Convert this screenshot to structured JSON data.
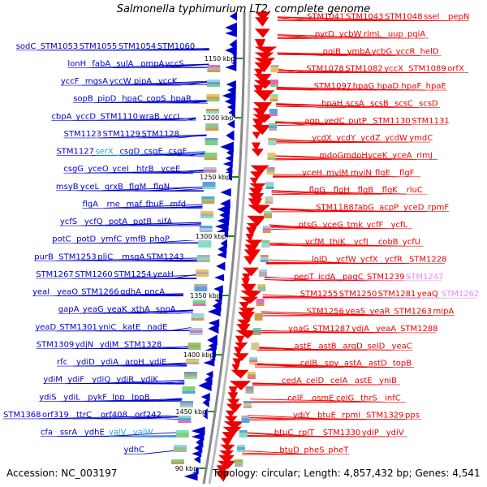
{
  "title": "Salmonella typhimurium LT2, complete genome",
  "footer": {
    "accession": "Accession: NC_003197",
    "summary": "Topology: circular; Length: 4,857,432 bp; Genes: 4,541"
  },
  "colors": {
    "left_strand": "#0000cc",
    "right_strand": "#ee0000",
    "rna_left": "#22aadd",
    "rna_right": "#ee88ee",
    "backbone": "#888888",
    "tick_mark": "#009900"
  },
  "ticks": [
    "1150 kbp",
    "1200 kbp",
    "1250 kbp",
    "1300 kbp",
    "1350 kbp",
    "1400 kbp",
    "1450 kbp",
    "90 kbp"
  ],
  "left_labels": [
    {
      "t": "sodC"
    },
    {
      "t": "STM1053"
    },
    {
      "t": "STM1055"
    },
    {
      "t": "STM1054"
    },
    {
      "t": "STM1060"
    },
    {
      "t": "lonH"
    },
    {
      "t": "fabA"
    },
    {
      "t": "sulA"
    },
    {
      "t": "ompA"
    },
    {
      "t": "yccS"
    },
    {
      "t": "yccF"
    },
    {
      "t": "mgsA"
    },
    {
      "t": "yccW"
    },
    {
      "t": "pipA"
    },
    {
      "t": "yccK"
    },
    {
      "t": "sopB"
    },
    {
      "t": "pipD"
    },
    {
      "t": "hpaC"
    },
    {
      "t": "copS"
    },
    {
      "t": "hpaR"
    },
    {
      "t": "cbpA"
    },
    {
      "t": "yccD"
    },
    {
      "t": "STM1110"
    },
    {
      "t": "wraB"
    },
    {
      "t": "yccJ"
    },
    {
      "t": "STM1123"
    },
    {
      "t": "STM1129"
    },
    {
      "t": "STM1128"
    },
    {
      "t": "STM1127"
    },
    {
      "t": "serX",
      "rna": true
    },
    {
      "t": "csgD"
    },
    {
      "t": "csgE"
    },
    {
      "t": "csgF"
    },
    {
      "t": "csgG"
    },
    {
      "t": "yceO"
    },
    {
      "t": "yceI"
    },
    {
      "t": "htrB"
    },
    {
      "t": "yceE"
    },
    {
      "t": "msyB"
    },
    {
      "t": "yceL"
    },
    {
      "t": "grxB"
    },
    {
      "t": "flgM"
    },
    {
      "t": "flgN"
    },
    {
      "t": "flgA"
    },
    {
      "t": "rne"
    },
    {
      "t": "maf"
    },
    {
      "t": "fhuE"
    },
    {
      "t": "mfd"
    },
    {
      "t": "ycfS"
    },
    {
      "t": "ycfQ"
    },
    {
      "t": "potA"
    },
    {
      "t": "potB"
    },
    {
      "t": "sifA"
    },
    {
      "t": "potC"
    },
    {
      "t": "potD"
    },
    {
      "t": "ymfC"
    },
    {
      "t": "ymfB"
    },
    {
      "t": "phoP"
    },
    {
      "t": "purB"
    },
    {
      "t": "STM1253"
    },
    {
      "t": "pliC"
    },
    {
      "t": "msgA"
    },
    {
      "t": "STM1243"
    },
    {
      "t": "STM1267"
    },
    {
      "t": "STM1260"
    },
    {
      "t": "STM1254"
    },
    {
      "t": "yeaH"
    },
    {
      "t": "yeaI"
    },
    {
      "t": "yeaO"
    },
    {
      "t": "STM1266"
    },
    {
      "t": "gdhA"
    },
    {
      "t": "pncA"
    },
    {
      "t": "gapA"
    },
    {
      "t": "yeaG"
    },
    {
      "t": "yeaK"
    },
    {
      "t": "xthA"
    },
    {
      "t": "sppA"
    },
    {
      "t": "yeaD"
    },
    {
      "t": "STM1301"
    },
    {
      "t": "yniC"
    },
    {
      "t": "katE"
    },
    {
      "t": "nadE"
    },
    {
      "t": "STM1309"
    },
    {
      "t": "ydjN"
    },
    {
      "t": "ydjM"
    },
    {
      "t": "STM1328"
    },
    {
      "t": "rfc"
    },
    {
      "t": "ydiD"
    },
    {
      "t": "ydiA"
    },
    {
      "t": "aroH"
    },
    {
      "t": "ydiE"
    },
    {
      "t": "ydiM"
    },
    {
      "t": "ydiF"
    },
    {
      "t": "ydiQ"
    },
    {
      "t": "ydiR"
    },
    {
      "t": "ydiK"
    },
    {
      "t": "ydiS"
    },
    {
      "t": "ydiL"
    },
    {
      "t": "pykF"
    },
    {
      "t": "lpp"
    },
    {
      "t": "lppB"
    },
    {
      "t": "STM1368"
    },
    {
      "t": "orf319"
    },
    {
      "t": "ttrC"
    },
    {
      "t": "orf408"
    },
    {
      "t": "orf242"
    },
    {
      "t": "cfa"
    },
    {
      "t": "ssrA"
    },
    {
      "t": "ydhE"
    },
    {
      "t": "valV",
      "rna": true
    },
    {
      "t": "valW",
      "rna": true
    },
    {
      "t": "ydhC"
    }
  ],
  "right_labels": [
    {
      "t": "STM1041"
    },
    {
      "t": "STM1043"
    },
    {
      "t": "STM1048"
    },
    {
      "t": "sseI"
    },
    {
      "t": "pepN"
    },
    {
      "t": "pyrD"
    },
    {
      "t": "ycbW"
    },
    {
      "t": "rlmL"
    },
    {
      "t": "uup"
    },
    {
      "t": "pqiA"
    },
    {
      "t": "pqiB"
    },
    {
      "t": "ymbA"
    },
    {
      "t": "ycbG"
    },
    {
      "t": "yccR"
    },
    {
      "t": "helD"
    },
    {
      "t": "STM1078"
    },
    {
      "t": "STM1082"
    },
    {
      "t": "yccX"
    },
    {
      "t": "STM1089"
    },
    {
      "t": "orfX"
    },
    {
      "t": "STM1097"
    },
    {
      "t": "hpaG"
    },
    {
      "t": "hpaD"
    },
    {
      "t": "hpaF"
    },
    {
      "t": "hpaE"
    },
    {
      "t": "hpaH"
    },
    {
      "t": "scsA"
    },
    {
      "t": "scsB"
    },
    {
      "t": "scsC"
    },
    {
      "t": "scsD"
    },
    {
      "t": "agp"
    },
    {
      "t": "yedC"
    },
    {
      "t": "putP"
    },
    {
      "t": "STM1130"
    },
    {
      "t": "STM1131"
    },
    {
      "t": "ycdX"
    },
    {
      "t": "ycdY"
    },
    {
      "t": "ycdZ"
    },
    {
      "t": "ycdW"
    },
    {
      "t": "ymdC"
    },
    {
      "t": "mdoG"
    },
    {
      "t": "mdoH"
    },
    {
      "t": "yceK"
    },
    {
      "t": "yceA"
    },
    {
      "t": "rimJ"
    },
    {
      "t": "yceH"
    },
    {
      "t": "mviM"
    },
    {
      "t": "mviN"
    },
    {
      "t": "flgE"
    },
    {
      "t": "flgF"
    },
    {
      "t": "flgG"
    },
    {
      "t": "flgH"
    },
    {
      "t": "flgB"
    },
    {
      "t": "flgK"
    },
    {
      "t": "rluC"
    },
    {
      "t": "STM1188"
    },
    {
      "t": "fabG"
    },
    {
      "t": "acpP"
    },
    {
      "t": "yceD"
    },
    {
      "t": "rpmF"
    },
    {
      "t": "ptsG"
    },
    {
      "t": "yceG"
    },
    {
      "t": "tmk"
    },
    {
      "t": "ycfF"
    },
    {
      "t": "ycfL"
    },
    {
      "t": "ycfM"
    },
    {
      "t": "thiK"
    },
    {
      "t": "ycfJ"
    },
    {
      "t": "cobB"
    },
    {
      "t": "ycfU"
    },
    {
      "t": "lolD"
    },
    {
      "t": "ycfW"
    },
    {
      "t": "ycfX"
    },
    {
      "t": "ycfR"
    },
    {
      "t": "STM1228"
    },
    {
      "t": "pepT"
    },
    {
      "t": "icdA"
    },
    {
      "t": "pagC"
    },
    {
      "t": "STM1239"
    },
    {
      "t": "STM1247",
      "rna": true
    },
    {
      "t": "STM1255"
    },
    {
      "t": "STM1250"
    },
    {
      "t": "STM1281"
    },
    {
      "t": "yeaQ"
    },
    {
      "t": "STM1262",
      "rna": true
    },
    {
      "t": "STM1256"
    },
    {
      "t": "yeaS"
    },
    {
      "t": "yeaR"
    },
    {
      "t": "STM1263"
    },
    {
      "t": "mipA"
    },
    {
      "t": "yoaG"
    },
    {
      "t": "STM1287"
    },
    {
      "t": "ydjA"
    },
    {
      "t": "yeaA"
    },
    {
      "t": "STM1288"
    },
    {
      "t": "astE"
    },
    {
      "t": "astB"
    },
    {
      "t": "argD"
    },
    {
      "t": "selD"
    },
    {
      "t": "yeaC"
    },
    {
      "t": "celB"
    },
    {
      "t": "spy"
    },
    {
      "t": "astA"
    },
    {
      "t": "astD"
    },
    {
      "t": "topB"
    },
    {
      "t": "cedA"
    },
    {
      "t": "celD"
    },
    {
      "t": "celA"
    },
    {
      "t": "astE"
    },
    {
      "t": "yniB"
    },
    {
      "t": "celF"
    },
    {
      "t": "osmE"
    },
    {
      "t": "celG"
    },
    {
      "t": "thrS"
    },
    {
      "t": "infC"
    },
    {
      "t": "ydiY"
    },
    {
      "t": "btuE"
    },
    {
      "t": "rpmI"
    },
    {
      "t": "STM1329"
    },
    {
      "t": "pps"
    },
    {
      "t": "btuC"
    },
    {
      "t": "rplT"
    },
    {
      "t": "STM1330"
    },
    {
      "t": "ydiP"
    },
    {
      "t": "ydiV"
    },
    {
      "t": "btuD"
    },
    {
      "t": "pheS"
    },
    {
      "t": "pheT"
    }
  ]
}
